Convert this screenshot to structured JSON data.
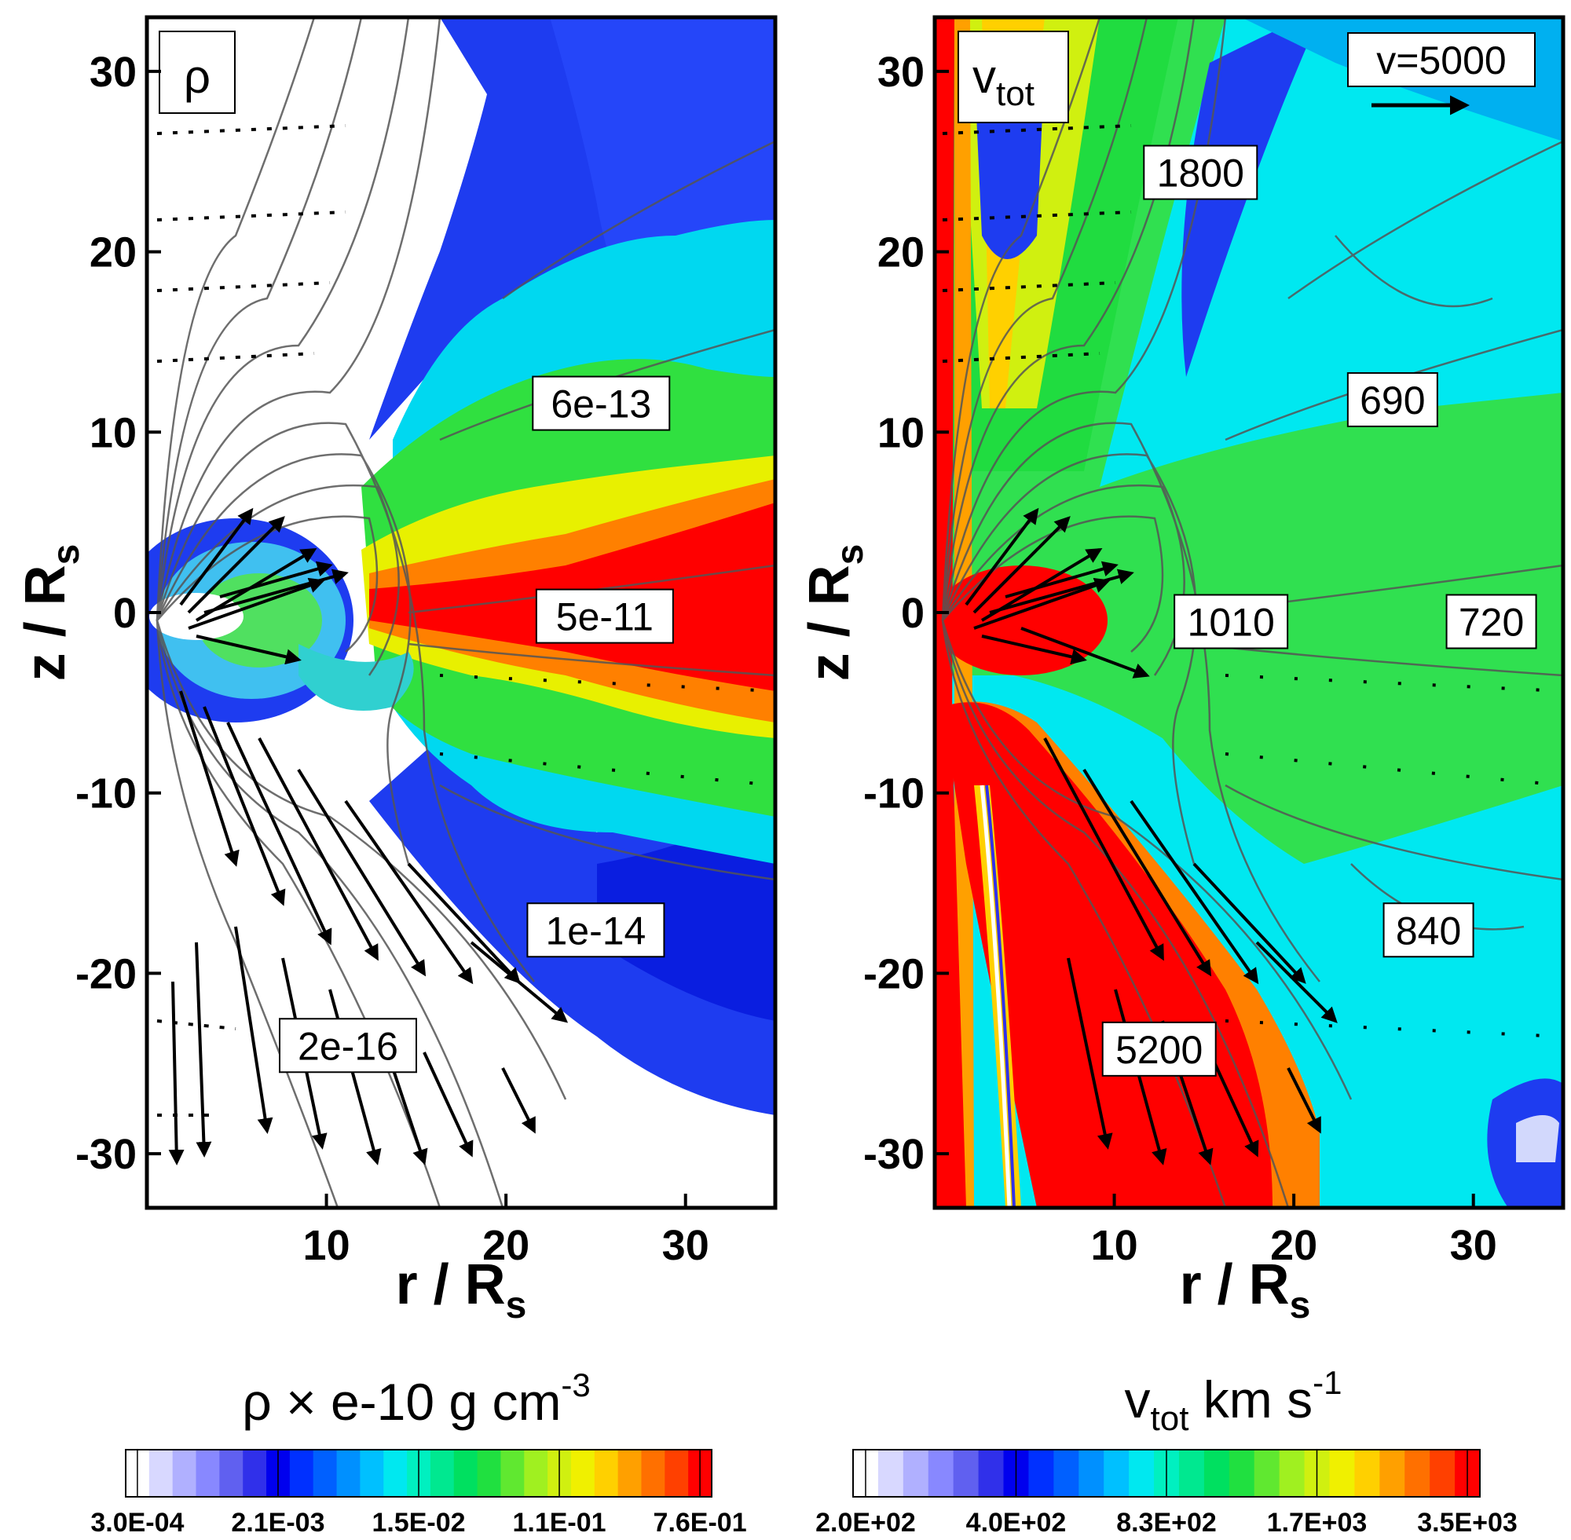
{
  "chart_data": [
    {
      "type": "heatmap",
      "panel_label": "ρ",
      "xlabel": "r / R",
      "xlabel_sub": "s",
      "ylabel": "z / R",
      "ylabel_sub": "s",
      "xlim": [
        0,
        35
      ],
      "ylim": [
        -33,
        33
      ],
      "xticks": [
        10,
        20,
        30
      ],
      "yticks": [
        30,
        20,
        10,
        0,
        -10,
        -20,
        -30
      ],
      "contour_labels": [
        {
          "text": "6e-13",
          "r": 25.3,
          "z": 11.6
        },
        {
          "text": "5e-11",
          "r": 25.5,
          "z": -0.2
        },
        {
          "text": "1e-14",
          "r": 25.0,
          "z": -17.6
        },
        {
          "text": "2e-16",
          "r": 11.2,
          "z": -24.0
        }
      ],
      "colorbar": {
        "title": "ρ × e-10 g cm",
        "title_sup": "-3",
        "tick_labels": [
          "3.0E-04",
          "2.1E-03",
          "1.5E-02",
          "1.1E-01",
          "7.6E-01"
        ],
        "colors": [
          "#ffffff",
          "#d8d8ff",
          "#b0b0ff",
          "#8888ff",
          "#6060f0",
          "#3030ea",
          "#0000ee",
          "#0030ff",
          "#0060ff",
          "#0090ff",
          "#00c0ff",
          "#00e8f0",
          "#00f0c0",
          "#00e890",
          "#00e060",
          "#20e040",
          "#60e830",
          "#a0f020",
          "#d0f010",
          "#f0f000",
          "#ffd000",
          "#ffa000",
          "#ff7000",
          "#ff4000",
          "#ff0000"
        ]
      }
    },
    {
      "type": "heatmap",
      "panel_label": "v",
      "panel_label_sub": "tot",
      "xlabel": "r / R",
      "xlabel_sub": "s",
      "ylabel": "z / R",
      "ylabel_sub": "s",
      "xlim": [
        0,
        35
      ],
      "ylim": [
        -33,
        33
      ],
      "xticks": [
        10,
        20,
        30
      ],
      "yticks": [
        30,
        20,
        10,
        0,
        -10,
        -20,
        -30
      ],
      "reference_vector": "v=5000",
      "contour_labels": [
        {
          "text": "1800",
          "r": 14.8,
          "z": 24.4
        },
        {
          "text": "690",
          "r": 25.5,
          "z": 11.8
        },
        {
          "text": "1010",
          "r": 16.5,
          "z": -0.5
        },
        {
          "text": "720",
          "r": 31.0,
          "z": -0.5
        },
        {
          "text": "840",
          "r": 27.5,
          "z": -17.6
        },
        {
          "text": "5200",
          "r": 12.5,
          "z": -24.2
        }
      ],
      "colorbar": {
        "title": "v",
        "title_sub": "tot",
        "title_rest": "km s",
        "title_sup": "-1",
        "tick_labels": [
          "2.0E+02",
          "4.0E+02",
          "8.3E+02",
          "1.7E+03",
          "3.5E+03"
        ],
        "colors": [
          "#ffffff",
          "#d8d8ff",
          "#b0b0ff",
          "#8888ff",
          "#6060f0",
          "#3030ea",
          "#0000ee",
          "#0030ff",
          "#0060ff",
          "#0090ff",
          "#00c0ff",
          "#00e8f0",
          "#00f0c0",
          "#00e890",
          "#00e060",
          "#20e040",
          "#60e830",
          "#a0f020",
          "#d0f010",
          "#f0f000",
          "#ffd000",
          "#ffa000",
          "#ff7000",
          "#ff4000",
          "#ff0000"
        ]
      }
    }
  ]
}
